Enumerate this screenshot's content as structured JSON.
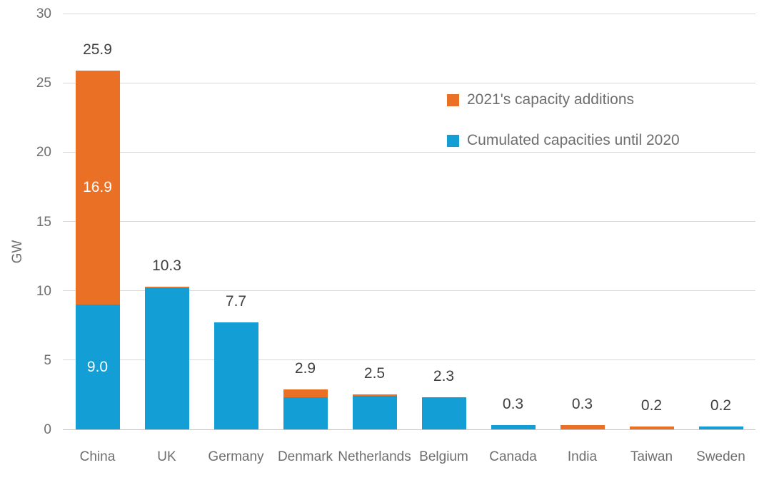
{
  "chart_data": {
    "type": "bar",
    "stacked": true,
    "title": "",
    "ylabel": "GW",
    "xlabel": "",
    "ylim": [
      0,
      30
    ],
    "yticks": [
      0,
      5,
      10,
      15,
      20,
      25,
      30
    ],
    "grid": true,
    "legend_position": "inside-top-right",
    "categories": [
      "China",
      "UK",
      "Germany",
      "Denmark",
      "Netherlands",
      "Belgium",
      "Canada",
      "India",
      "Taiwan",
      "Sweden"
    ],
    "series": [
      {
        "name": "Cumulated capacities until 2020",
        "color": "#149ED6",
        "values": [
          9.0,
          10.2,
          7.7,
          2.3,
          2.4,
          2.3,
          0.3,
          0,
          0,
          0.2
        ],
        "inside_labels": [
          "9.0",
          null,
          null,
          null,
          null,
          null,
          null,
          null,
          null,
          null
        ]
      },
      {
        "name": "2021's capacity additions",
        "color": "#EA7026",
        "values": [
          16.9,
          0.1,
          0,
          0.6,
          0.1,
          0,
          0,
          0.3,
          0.2,
          0
        ],
        "inside_labels": [
          "16.9",
          null,
          null,
          null,
          null,
          null,
          null,
          null,
          null,
          null
        ]
      }
    ],
    "total_labels": [
      "25.9",
      "10.3",
      "7.7",
      "2.9",
      "2.5",
      "2.3",
      "0.3",
      "0.3",
      "0.2",
      "0.2"
    ],
    "legend": [
      {
        "label": "2021's capacity additions",
        "color": "#EA7026"
      },
      {
        "label": "Cumulated capacities until 2020",
        "color": "#149ED6"
      }
    ]
  },
  "colors": {
    "additions_2021": "#EA7026",
    "until_2020": "#149ED6",
    "gridline": "#D9D9D9",
    "baseline": "#C7C7C7",
    "axis_text": "#6E6E6E",
    "value_label": "#3F3F3F",
    "inside_label": "#FFFFFF",
    "background": "#FFFFFF"
  }
}
